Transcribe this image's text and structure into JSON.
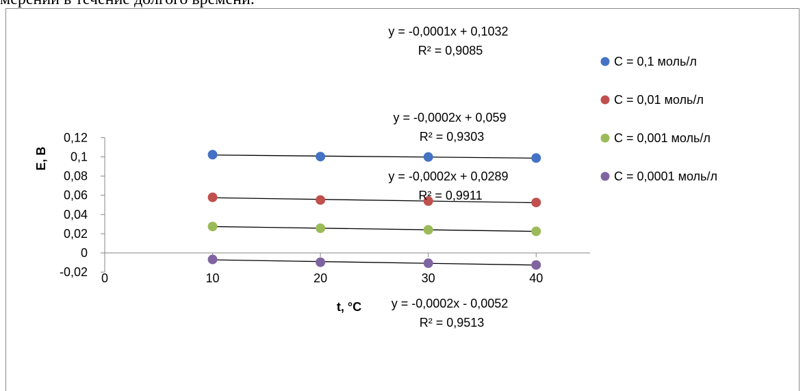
{
  "page_text": "мерении в течение долгого времени.",
  "chart_data": {
    "type": "scatter",
    "title": "",
    "xlabel": "t, °C",
    "ylabel": "E, В",
    "xlim": [
      0,
      45
    ],
    "ylim": [
      -0.02,
      0.12
    ],
    "x_ticks": [
      "0",
      "10",
      "20",
      "30",
      "40"
    ],
    "y_ticks": [
      "-0,02",
      "0",
      "0,02",
      "0,04",
      "0,06",
      "0,08",
      "0,1",
      "0,12"
    ],
    "grid": false,
    "legend_position": "right",
    "series": [
      {
        "name": "C = 0,1 моль/л",
        "color": "#4472C4",
        "x": [
          10,
          20,
          30,
          40
        ],
        "y": [
          0.1023,
          0.1003,
          0.0999,
          0.0988
        ],
        "trendline": {
          "slope": -0.0001,
          "intercept": 0.1032,
          "equation": "y = -0,0001x + 0,1032",
          "r2": "R² = 0,9085"
        }
      },
      {
        "name": "C = 0,01 моль/л",
        "color": "#C0504D",
        "x": [
          10,
          20,
          30,
          40
        ],
        "y": [
          0.0579,
          0.0551,
          0.054,
          0.0525
        ],
        "trendline": {
          "slope": -0.0002,
          "intercept": 0.059,
          "equation": "y = -0,0002x + 0,059",
          "r2": "R² = 0,9303"
        }
      },
      {
        "name": "C = 0,001 моль/л",
        "color": "#9BBB59",
        "x": [
          10,
          20,
          30,
          40
        ],
        "y": [
          0.0275,
          0.0257,
          0.024,
          0.0225
        ],
        "trendline": {
          "slope": -0.0002,
          "intercept": 0.0289,
          "equation": "y = -0,0002x + 0,0289",
          "r2": "R² = 0,9911"
        }
      },
      {
        "name": "C = 0,0001 моль/л",
        "color": "#8064A2",
        "x": [
          10,
          20,
          30,
          40
        ],
        "y": [
          -0.0068,
          -0.0097,
          -0.0107,
          -0.0125
        ],
        "trendline": {
          "slope": -0.0002,
          "intercept": -0.0052,
          "equation": "y = -0,0002x - 0,0052",
          "r2": "R² = 0,9513"
        }
      }
    ]
  }
}
